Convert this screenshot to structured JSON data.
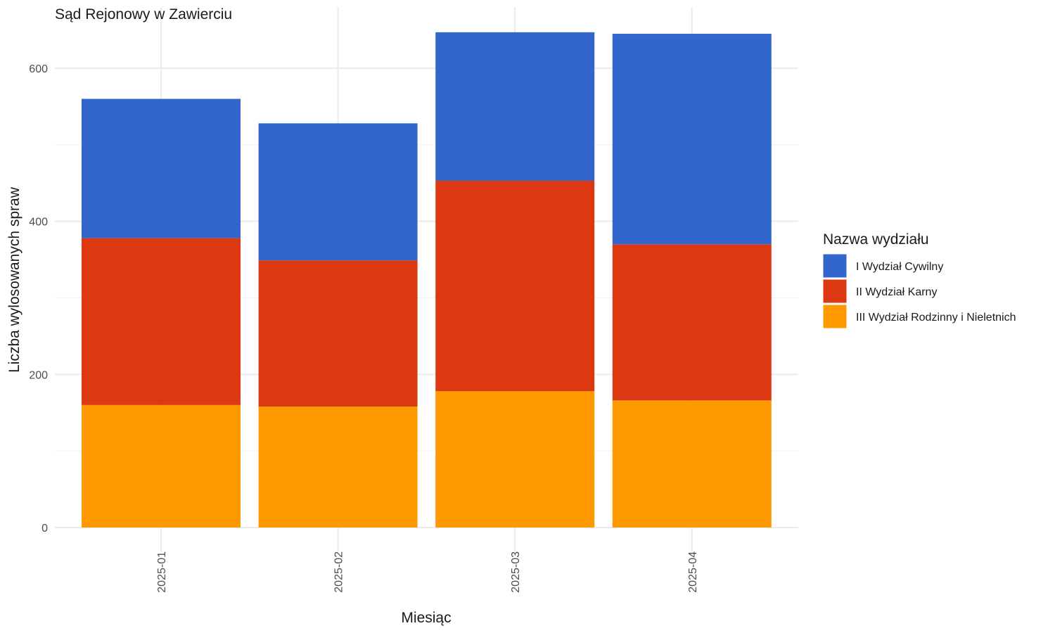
{
  "chart_data": {
    "type": "bar",
    "stacked": true,
    "title": "Sąd Rejonowy w Zawierciu",
    "xlabel": "Miesiąc",
    "ylabel": "Liczba wylosowanych spraw",
    "categories": [
      "2025-01",
      "2025-02",
      "2025-03",
      "2025-04"
    ],
    "series": [
      {
        "name": "III Wydział Rodzinny i Nieletnich",
        "color": "#FF9900",
        "values": [
          160,
          158,
          178,
          166
        ]
      },
      {
        "name": "II Wydział Karny",
        "color": "#DC3912",
        "values": [
          218,
          191,
          275,
          204
        ]
      },
      {
        "name": "I Wydział Cywilny",
        "color": "#3366CC",
        "values": [
          182,
          179,
          194,
          275
        ]
      }
    ],
    "ylim": [
      0,
      670
    ],
    "yticks": [
      0,
      200,
      400,
      600
    ],
    "grid": true,
    "legend": {
      "title": "Nazwa wydziału",
      "position": "right",
      "entries": [
        "I Wydział Cywilny",
        "II Wydział Karny",
        "III Wydział Rodzinny i Nieletnich"
      ]
    }
  }
}
